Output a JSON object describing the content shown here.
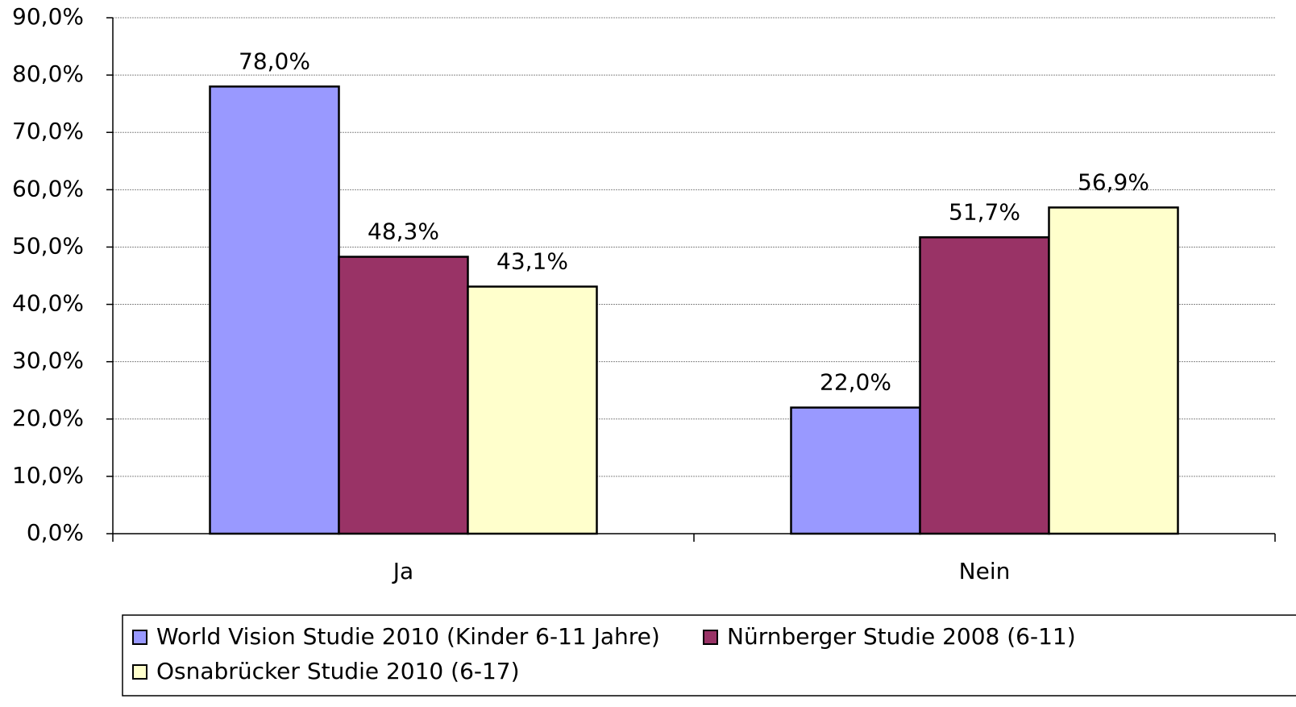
{
  "chart_data": {
    "type": "bar",
    "categories": [
      "Ja",
      "Nein"
    ],
    "series": [
      {
        "name": "World Vision Studie 2010 (Kinder 6-11 Jahre)",
        "color": "#9999ff",
        "values": [
          78.0,
          22.0
        ],
        "value_labels": [
          "78,0%",
          "22,0%"
        ]
      },
      {
        "name": "Nürnberger Studie 2008 (6-11)",
        "color": "#993366",
        "values": [
          48.3,
          51.7
        ],
        "value_labels": [
          "48,3%",
          "51,7%"
        ]
      },
      {
        "name": "Osnabrücker Studie 2010 (6-17)",
        "color": "#ffffcc",
        "values": [
          43.1,
          56.9
        ],
        "value_labels": [
          "43,1%",
          "56,9%"
        ]
      }
    ],
    "ylim": [
      0,
      90
    ],
    "yticks": [
      {
        "value": 0,
        "label": "0,0%"
      },
      {
        "value": 10,
        "label": "10,0%"
      },
      {
        "value": 20,
        "label": "20,0%"
      },
      {
        "value": 30,
        "label": "30,0%"
      },
      {
        "value": 40,
        "label": "40,0%"
      },
      {
        "value": 50,
        "label": "50,0%"
      },
      {
        "value": 60,
        "label": "60,0%"
      },
      {
        "value": 70,
        "label": "70,0%"
      },
      {
        "value": 80,
        "label": "80,0%"
      },
      {
        "value": 90,
        "label": "90,0%"
      }
    ],
    "grid": true,
    "legend": "bottom"
  }
}
